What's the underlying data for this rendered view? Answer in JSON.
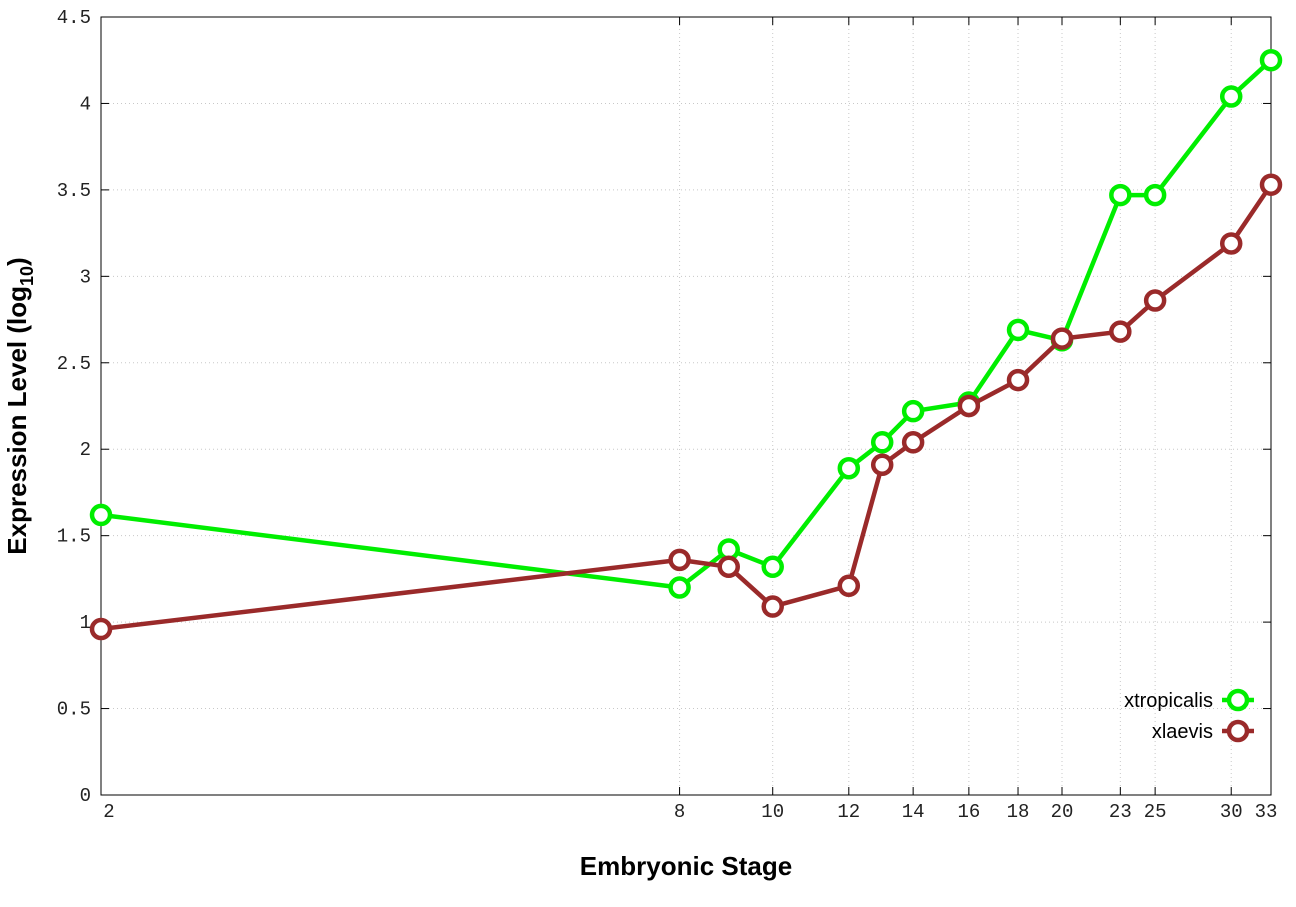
{
  "chart_data": {
    "type": "line",
    "title": "",
    "xlabel": "Embryonic Stage",
    "ylabel": {
      "main": "Expression Level (log",
      "subscript": "10",
      "close": ")"
    },
    "x_scale": "log",
    "x": [
      2,
      8,
      9,
      10,
      12,
      13,
      14,
      16,
      18,
      20,
      23,
      25,
      30,
      33
    ],
    "x_ticks": [
      2,
      8,
      10,
      12,
      14,
      16,
      18,
      20,
      23,
      25,
      30,
      33
    ],
    "x_tick_labels": [
      "2",
      "8",
      "10",
      "12",
      "14",
      "16",
      "18",
      "20",
      "23",
      "25",
      "30",
      "33"
    ],
    "xlim": [
      2,
      33
    ],
    "ylim": [
      0,
      4.5
    ],
    "y_ticks": [
      0,
      0.5,
      1,
      1.5,
      2,
      2.5,
      3,
      3.5,
      4,
      4.5
    ],
    "y_tick_labels": [
      "0",
      "0.5",
      "1",
      "1.5",
      "2",
      "2.5",
      "3",
      "3.5",
      "4",
      "4.5"
    ],
    "grid": true,
    "legend_position": "bottom-right",
    "series": [
      {
        "name": "xtropicalis",
        "color": "#00ee00",
        "marker": "open-circle",
        "values": [
          1.62,
          1.2,
          1.42,
          1.32,
          1.89,
          2.04,
          2.22,
          2.27,
          2.69,
          2.63,
          3.47,
          3.47,
          4.04,
          4.25
        ]
      },
      {
        "name": "xlaevis",
        "color": "#9a2a2a",
        "marker": "open-circle",
        "values": [
          0.96,
          1.36,
          1.32,
          1.09,
          1.21,
          1.91,
          2.04,
          2.25,
          2.4,
          2.64,
          2.68,
          2.86,
          3.19,
          3.53
        ]
      }
    ]
  }
}
